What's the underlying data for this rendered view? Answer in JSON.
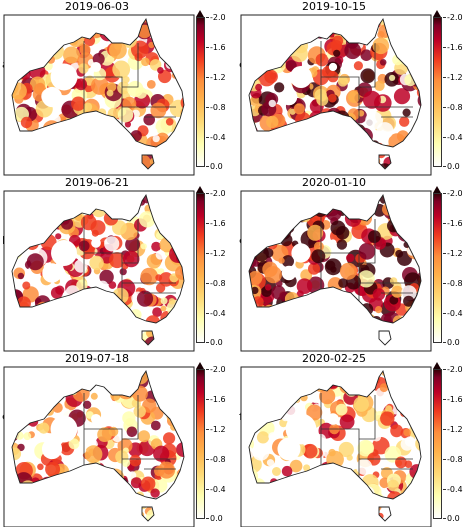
{
  "panels": [
    {
      "letter": "a)",
      "date": "2019-06-03"
    },
    {
      "letter": "d)",
      "date": "2019-10-15"
    },
    {
      "letter": "b)",
      "date": "2019-06-21"
    },
    {
      "letter": "e)",
      "date": "2020-01-10"
    },
    {
      "letter": "c)",
      "date": "2019-07-18"
    },
    {
      "letter": "f)",
      "date": "2020-02-25"
    }
  ],
  "colorbar": {
    "ticks": [
      "-2.0",
      "-1.6",
      "-1.2",
      "-0.8",
      "-0.4",
      "0.0"
    ],
    "range": [
      -2.0,
      0.0
    ],
    "extend": "min",
    "colors": [
      "#ffffff",
      "#ffffb2",
      "#fed976",
      "#feb24c",
      "#fd8d3c",
      "#f03b20",
      "#bd0026",
      "#800026",
      "#3a0008"
    ]
  }
}
